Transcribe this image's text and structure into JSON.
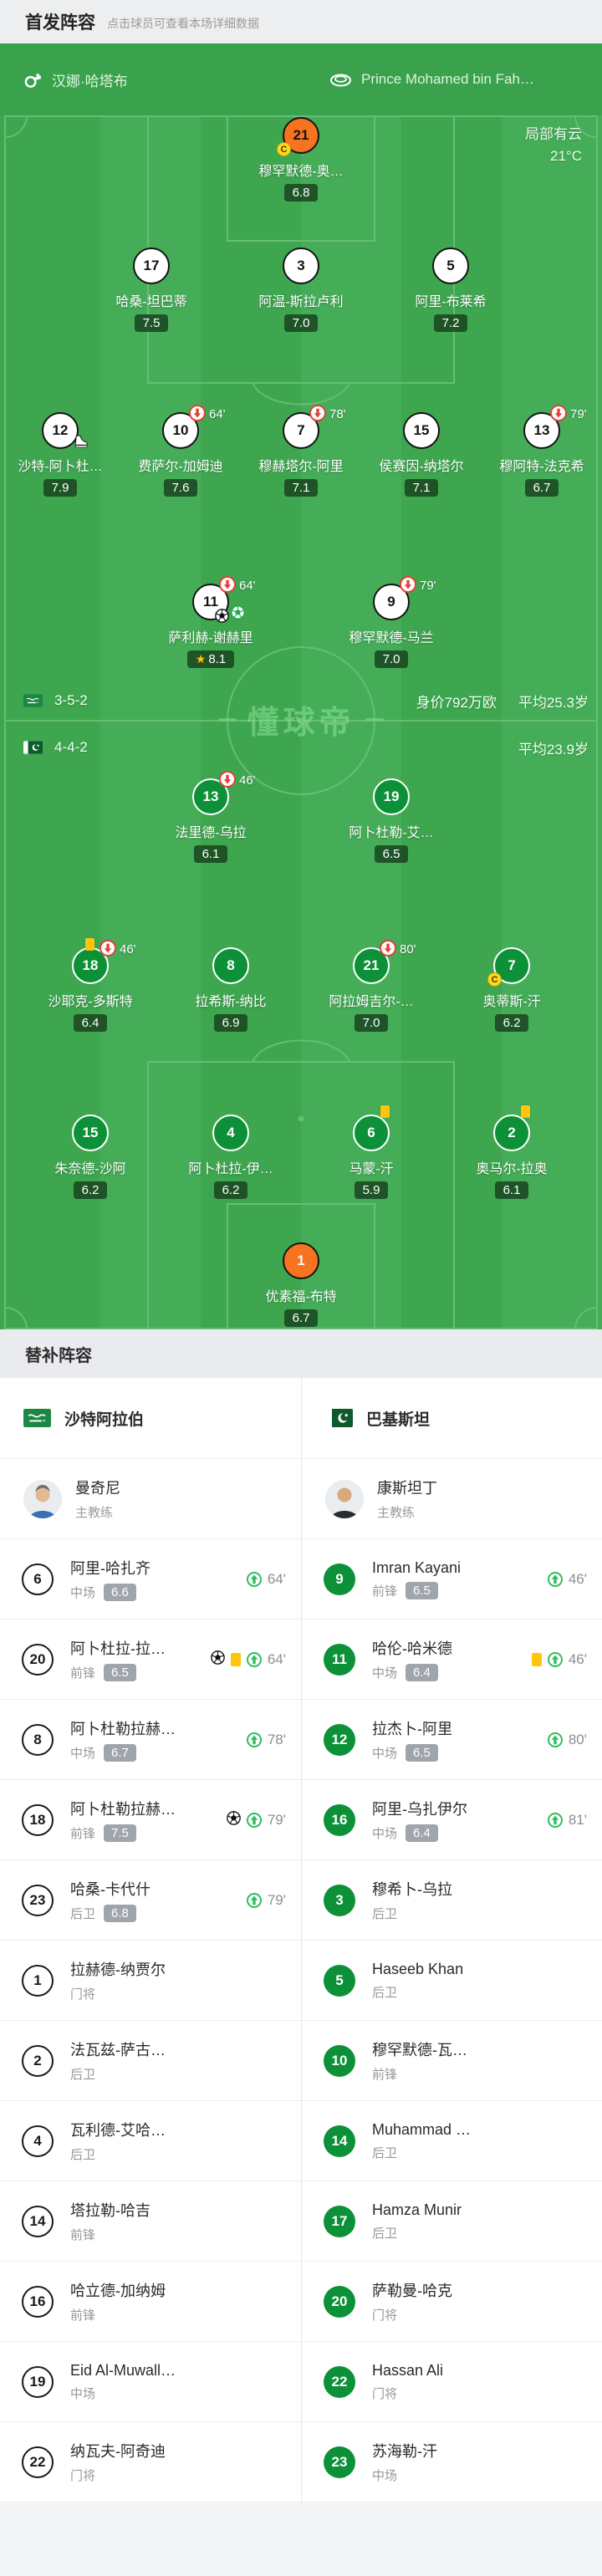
{
  "colors": {
    "accent_green": "#3aa24c",
    "pitch_green": "#3fa853",
    "pakistan_green": "#0c9038",
    "gk_orange": "#f7731f",
    "rating_badge_green": "#1a4821",
    "bench_rating_gray": "#9fa5ab",
    "yellow_card": "#ffc40c",
    "sub_off_red": "#e0433a",
    "sub_on_green": "#2fbe5f",
    "captain_yellow": "#ffd91e"
  },
  "header": {
    "title": "首发阵容",
    "subtitle": "点击球员可查看本场详细数据"
  },
  "match_bar": {
    "referee": "汉娜·哈塔布",
    "stadium": "Prince Mohamed bin Fah…"
  },
  "pitch": {
    "weather_line1": "局部有云",
    "weather_line2": "21°C",
    "watermark": "懂球帝",
    "home_formation": "3-5-2",
    "home_value": "身价792万欧",
    "home_age": "平均25.3岁",
    "away_formation": "4-4-2",
    "away_age": "平均23.9岁",
    "home_lines": [
      [
        {
          "num": 21,
          "name": "穆罕默德-奥…",
          "rating": "6.8",
          "gk": true,
          "captain": true
        }
      ],
      [
        {
          "num": 17,
          "name": "哈桑-坦巴蒂",
          "rating": "7.5"
        },
        {
          "num": 3,
          "name": "阿温-斯拉卢利",
          "rating": "7.0"
        },
        {
          "num": 5,
          "name": "阿里-布莱希",
          "rating": "7.2"
        }
      ],
      [
        {
          "num": 12,
          "name": "沙特-阿卜杜…",
          "rating": "7.9",
          "assist": true
        },
        {
          "num": 10,
          "name": "费萨尔-加姆迪",
          "rating": "7.6",
          "off": "64'"
        },
        {
          "num": 7,
          "name": "穆赫塔尔-阿里",
          "rating": "7.1",
          "off": "78'"
        },
        {
          "num": 15,
          "name": "侯赛因-纳塔尔",
          "rating": "7.1"
        },
        {
          "num": 13,
          "name": "穆阿特-法克希",
          "rating": "6.7",
          "off": "79'"
        }
      ],
      [
        {
          "num": 11,
          "name": "萨利赫-谢赫里",
          "rating": "8.1",
          "off": "64'",
          "motm": true,
          "goal": true,
          "goal_green": true
        },
        {
          "num": 9,
          "name": "穆罕默德-马兰",
          "rating": "7.0",
          "off": "79'"
        }
      ]
    ],
    "away_lines": [
      [
        {
          "num": 13,
          "name": "法里德-乌拉",
          "rating": "6.1",
          "off": "46'"
        },
        {
          "num": 19,
          "name": "阿卜杜勒-艾…",
          "rating": "6.5"
        }
      ],
      [
        {
          "num": 18,
          "name": "沙耶克-多斯特",
          "rating": "6.4",
          "card": true,
          "off": "46'"
        },
        {
          "num": 8,
          "name": "拉希斯-纳比",
          "rating": "6.9"
        },
        {
          "num": 21,
          "name": "阿拉姆吉尔-…",
          "rating": "7.0",
          "off": "80'"
        },
        {
          "num": 7,
          "name": "奥蒂斯-汗",
          "rating": "6.2",
          "captain": true
        }
      ],
      [
        {
          "num": 15,
          "name": "朱奈德-沙阿",
          "rating": "6.2"
        },
        {
          "num": 4,
          "name": "阿卜杜拉-伊…",
          "rating": "6.2"
        },
        {
          "num": 6,
          "name": "马蒙-汗",
          "rating": "5.9",
          "card": true
        },
        {
          "num": 2,
          "name": "奥马尔-拉奥",
          "rating": "6.1",
          "card": true
        }
      ],
      [
        {
          "num": 1,
          "name": "优素福-布特",
          "rating": "6.7",
          "gk": true
        }
      ]
    ]
  },
  "bench": {
    "title": "替补阵容",
    "home": {
      "team": "沙特阿拉伯",
      "coach": {
        "name": "曼奇尼",
        "role": "主教练"
      },
      "players": [
        {
          "num": 6,
          "name": "阿里-哈扎齐",
          "pos": "中场",
          "rating": "6.6",
          "on": "64'"
        },
        {
          "num": 20,
          "name": "阿卜杜拉-拉…",
          "pos": "前锋",
          "rating": "6.5",
          "goal": true,
          "card": true,
          "on": "64'"
        },
        {
          "num": 8,
          "name": "阿卜杜勒拉赫…",
          "pos": "中场",
          "rating": "6.7",
          "on": "78'"
        },
        {
          "num": 18,
          "name": "阿卜杜勒拉赫…",
          "pos": "前锋",
          "rating": "7.5",
          "goal": true,
          "on": "79'"
        },
        {
          "num": 23,
          "name": "哈桑-卡代什",
          "pos": "后卫",
          "rating": "6.8",
          "on": "79'"
        },
        {
          "num": 1,
          "name": "拉赫德-纳贾尔",
          "pos": "门将"
        },
        {
          "num": 2,
          "name": "法瓦兹-萨古…",
          "pos": "后卫"
        },
        {
          "num": 4,
          "name": "瓦利德-艾哈…",
          "pos": "后卫"
        },
        {
          "num": 14,
          "name": "塔拉勒-哈吉",
          "pos": "前锋"
        },
        {
          "num": 16,
          "name": "哈立德-加纳姆",
          "pos": "前锋"
        },
        {
          "num": 19,
          "name": "Eid Al-Muwall…",
          "pos": "中场"
        },
        {
          "num": 22,
          "name": "纳瓦夫-阿奇迪",
          "pos": "门将"
        }
      ]
    },
    "away": {
      "team": "巴基斯坦",
      "coach": {
        "name": "康斯坦丁",
        "role": "主教练"
      },
      "players": [
        {
          "num": 9,
          "name": "Imran Kayani",
          "pos": "前锋",
          "rating": "6.5",
          "on": "46'"
        },
        {
          "num": 11,
          "name": "哈伦-哈米德",
          "pos": "中场",
          "rating": "6.4",
          "card": true,
          "on": "46'"
        },
        {
          "num": 12,
          "name": "拉杰卜-阿里",
          "pos": "中场",
          "rating": "6.5",
          "on": "80'"
        },
        {
          "num": 16,
          "name": "阿里-乌扎伊尔",
          "pos": "中场",
          "rating": "6.4",
          "on": "81'"
        },
        {
          "num": 3,
          "name": "穆希卜-乌拉",
          "pos": "后卫"
        },
        {
          "num": 5,
          "name": "Haseeb Khan",
          "pos": "后卫"
        },
        {
          "num": 10,
          "name": "穆罕默德-瓦…",
          "pos": "前锋"
        },
        {
          "num": 14,
          "name": "Muhammad …",
          "pos": "后卫"
        },
        {
          "num": 17,
          "name": "Hamza Munir",
          "pos": "后卫"
        },
        {
          "num": 20,
          "name": "萨勒曼-哈克",
          "pos": "门将"
        },
        {
          "num": 22,
          "name": "Hassan Ali",
          "pos": "门将"
        },
        {
          "num": 23,
          "name": "苏海勒-汗",
          "pos": "中场"
        }
      ]
    }
  }
}
